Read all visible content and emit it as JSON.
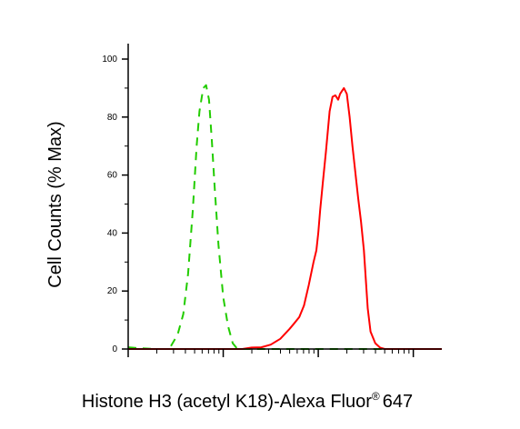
{
  "chart_data": {
    "type": "line",
    "xlabel": "Histone H3 (acetyl K18)-Alexa Fluor",
    "xlabel_superscript": "®",
    "xlabel_suffix": "647",
    "ylabel": "Cell Counts (% Max)",
    "x_scale": "log",
    "xlim_decades": [
      0,
      3.3
    ],
    "ylim": [
      0,
      100
    ],
    "y_ticks": [
      0,
      20,
      40,
      60,
      80,
      100
    ],
    "legend": "none",
    "grid": false,
    "series": [
      {
        "color": "#22cc00",
        "style": "dashed",
        "points": [
          [
            0.0,
            0.6
          ],
          [
            0.1,
            0.3
          ],
          [
            0.3,
            0
          ],
          [
            0.4,
            0
          ],
          [
            0.45,
            1
          ],
          [
            0.52,
            5
          ],
          [
            0.58,
            12
          ],
          [
            0.63,
            26
          ],
          [
            0.68,
            48
          ],
          [
            0.72,
            70
          ],
          [
            0.75,
            82
          ],
          [
            0.79,
            90
          ],
          [
            0.82,
            91
          ],
          [
            0.85,
            86
          ],
          [
            0.88,
            72
          ],
          [
            0.91,
            56
          ],
          [
            0.95,
            36
          ],
          [
            1.0,
            18
          ],
          [
            1.05,
            8
          ],
          [
            1.1,
            2
          ],
          [
            1.15,
            0
          ],
          [
            1.5,
            0
          ],
          [
            2.5,
            0
          ],
          [
            3.3,
            0
          ]
        ]
      },
      {
        "color": "#ff0000",
        "style": "solid",
        "points": [
          [
            0.0,
            0
          ],
          [
            1.2,
            0
          ],
          [
            1.3,
            0.5
          ],
          [
            1.4,
            0.6
          ],
          [
            1.5,
            1.5
          ],
          [
            1.6,
            3.5
          ],
          [
            1.7,
            7
          ],
          [
            1.75,
            9
          ],
          [
            1.8,
            11
          ],
          [
            1.85,
            15
          ],
          [
            1.9,
            22
          ],
          [
            1.95,
            30
          ],
          [
            1.98,
            34
          ],
          [
            2.0,
            40
          ],
          [
            2.02,
            48
          ],
          [
            2.05,
            58
          ],
          [
            2.08,
            68
          ],
          [
            2.12,
            82
          ],
          [
            2.15,
            87
          ],
          [
            2.18,
            87.5
          ],
          [
            2.21,
            86
          ],
          [
            2.23,
            88
          ],
          [
            2.25,
            89
          ],
          [
            2.27,
            90
          ],
          [
            2.3,
            88
          ],
          [
            2.33,
            80
          ],
          [
            2.36,
            70
          ],
          [
            2.38,
            64
          ],
          [
            2.4,
            58
          ],
          [
            2.42,
            52
          ],
          [
            2.45,
            44
          ],
          [
            2.48,
            34
          ],
          [
            2.5,
            24
          ],
          [
            2.52,
            14
          ],
          [
            2.55,
            6
          ],
          [
            2.6,
            2
          ],
          [
            2.65,
            0.5
          ],
          [
            2.7,
            0
          ],
          [
            3.3,
            0
          ]
        ]
      }
    ]
  }
}
